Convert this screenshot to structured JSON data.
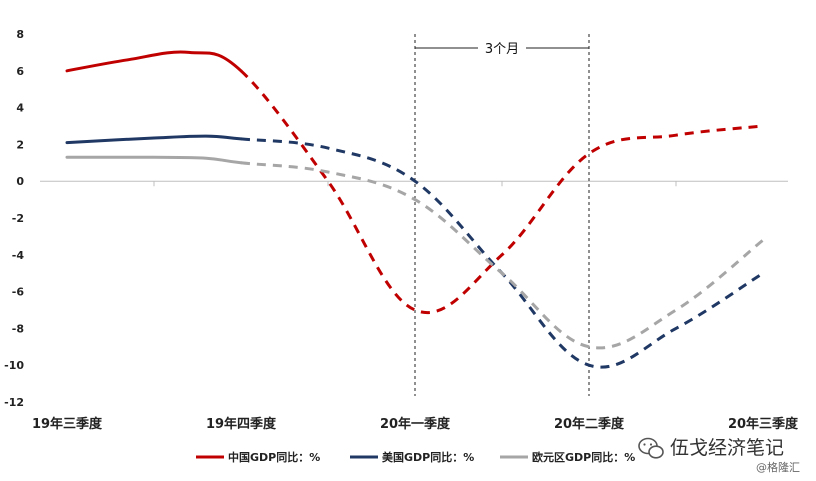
{
  "chart_data": {
    "type": "line",
    "title": "",
    "xlabel": "",
    "ylabel": "",
    "categories": [
      "19年三季度",
      "19年四季度",
      "20年一季度",
      "20年二季度",
      "20年三季度"
    ],
    "ylim": [
      -12,
      8
    ],
    "yticks": [
      8,
      6,
      4,
      2,
      0,
      -2,
      -4,
      -6,
      -8,
      -10,
      -12
    ],
    "grid": false,
    "legend_position": "bottom",
    "series": [
      {
        "name": "中国GDP同比：%",
        "color": "#c00000",
        "x": [
          0,
          0.35,
          0.7,
          1.0,
          1.5,
          2.0,
          2.5,
          3.0,
          3.5,
          4.0
        ],
        "values": [
          6.0,
          6.6,
          7.0,
          6.0,
          0.0,
          -7.0,
          -4.0,
          1.5,
          2.5,
          3.0
        ],
        "actual_until_x": 1.0
      },
      {
        "name": "美国GDP同比：%",
        "color": "#1f3864",
        "x": [
          0,
          0.5,
          0.8,
          1.0,
          1.5,
          2.0,
          2.5,
          3.0,
          3.5,
          4.0
        ],
        "values": [
          2.1,
          2.35,
          2.45,
          2.3,
          1.8,
          0.0,
          -5.0,
          -10.0,
          -8.0,
          -5.0
        ],
        "actual_until_x": 1.0
      },
      {
        "name": "欧元区GDP同比：%",
        "color": "#a6a6a6",
        "x": [
          0,
          0.5,
          0.8,
          1.0,
          1.5,
          2.0,
          2.5,
          3.0,
          3.5,
          4.0
        ],
        "values": [
          1.3,
          1.3,
          1.25,
          1.0,
          0.5,
          -1.0,
          -5.0,
          -9.0,
          -7.0,
          -3.2
        ],
        "actual_until_x": 1.0
      }
    ],
    "annotations": [
      {
        "text": "3个月",
        "from_x": 2.0,
        "to_x": 3.0
      }
    ]
  },
  "watermark": {
    "account": "伍戈经济笔记",
    "source": "@格隆汇"
  }
}
